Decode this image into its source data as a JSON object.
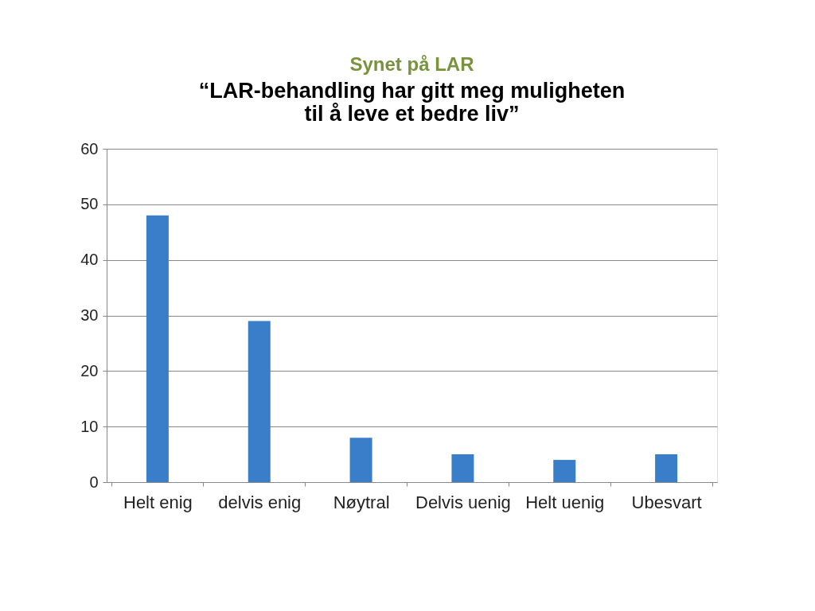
{
  "chart_data": {
    "type": "bar",
    "title": "Synet på LAR",
    "subtitle": "“LAR-behandling har gitt meg muligheten\ntil å leve et bedre liv”",
    "categories": [
      "Helt enig",
      "delvis enig",
      "Nøytral",
      "Delvis uenig",
      "Helt uenig",
      "Ubesvart"
    ],
    "values": [
      48,
      29,
      8,
      5,
      4,
      5
    ],
    "color": "#3a7dc9",
    "ylim": [
      0,
      60
    ],
    "yticks": [
      0,
      10,
      20,
      30,
      40,
      50,
      60
    ],
    "grid": "y"
  }
}
